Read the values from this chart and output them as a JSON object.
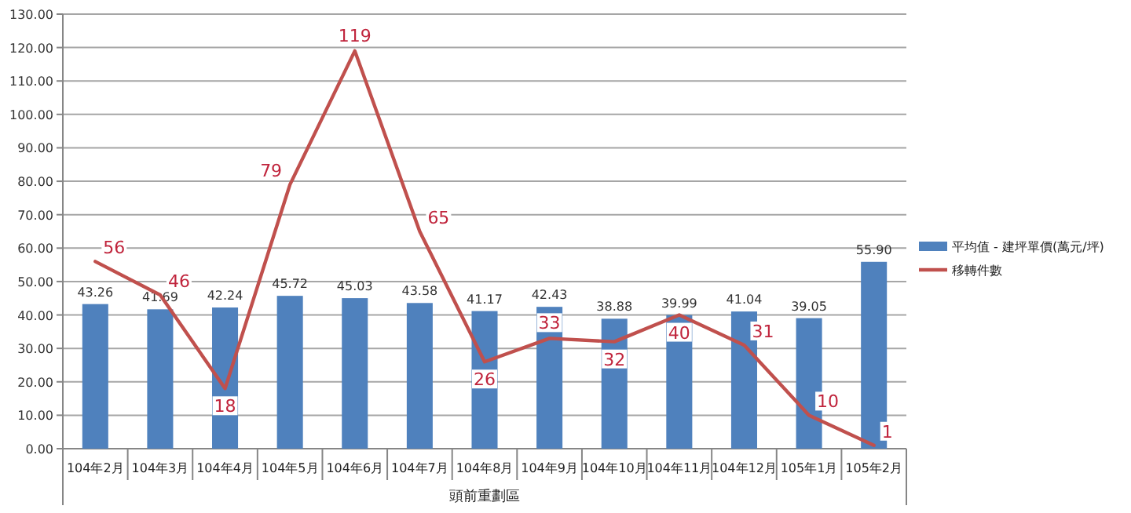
{
  "chart_data": {
    "type": "bar",
    "xlabel": "頭前重劃區",
    "categories": [
      "104年2月",
      "104年3月",
      "104年4月",
      "104年5月",
      "104年6月",
      "104年7月",
      "104年8月",
      "104年9月",
      "104年10月",
      "104年11月",
      "104年12月",
      "105年1月",
      "105年2月"
    ],
    "series": [
      {
        "name": "平均值 - 建坪單價(萬元/坪)",
        "color": "#4f81bd",
        "values": [
          43.26,
          41.69,
          42.24,
          45.72,
          45.03,
          43.58,
          41.17,
          42.43,
          38.88,
          39.99,
          41.04,
          39.05,
          55.9
        ],
        "value_labels": [
          "43.26",
          "41.69",
          "42.24",
          "45.72",
          "45.03",
          "43.58",
          "41.17",
          "42.43",
          "38.88",
          "39.99",
          "41.04",
          "39.05",
          "55.90"
        ]
      },
      {
        "name": "移轉件數",
        "type": "line",
        "color": "#c0504d",
        "values": [
          56,
          46,
          18,
          79,
          119,
          65,
          26,
          33,
          32,
          40,
          31,
          10,
          1
        ]
      }
    ],
    "ylim": [
      0,
      130
    ],
    "yticks": [
      {
        "value": 0,
        "label": "0.00"
      },
      {
        "value": 10,
        "label": "10.00"
      },
      {
        "value": 20,
        "label": "20.00"
      },
      {
        "value": 30,
        "label": "30.00"
      },
      {
        "value": 40,
        "label": "40.00"
      },
      {
        "value": 50,
        "label": "50.00"
      },
      {
        "value": 60,
        "label": "60.00"
      },
      {
        "value": 70,
        "label": "70.00"
      },
      {
        "value": 80,
        "label": "80.00"
      },
      {
        "value": 90,
        "label": "90.00"
      },
      {
        "value": 100,
        "label": "100.00"
      },
      {
        "value": 110,
        "label": "110.00"
      },
      {
        "value": 120,
        "label": "120.00"
      },
      {
        "value": 130,
        "label": "130.00"
      }
    ],
    "grid": "y",
    "legend": "right",
    "data_labels": true,
    "line_style": "solid"
  }
}
